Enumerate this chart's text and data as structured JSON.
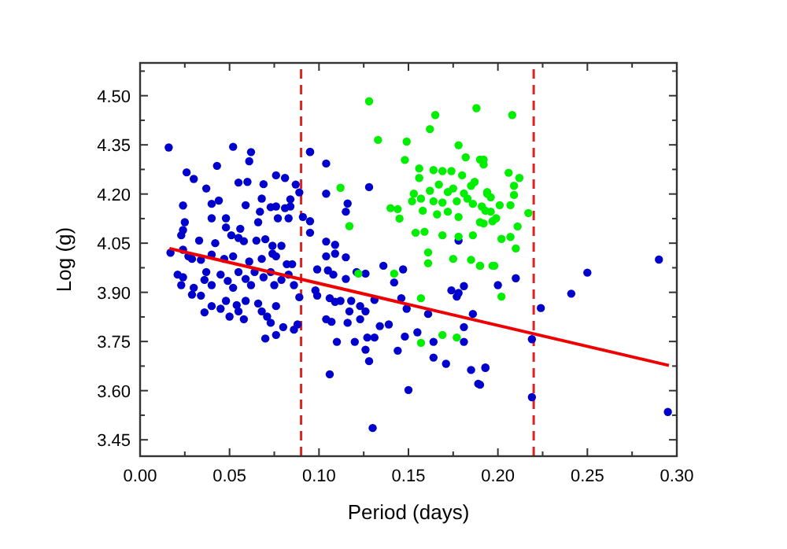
{
  "chart_data": {
    "type": "scatter",
    "xlabel": "Period (days)",
    "ylabel": "Log (g)",
    "xlim": [
      0,
      0.3
    ],
    "ylim": [
      3.4,
      4.6
    ],
    "xticks": [
      {
        "value": 0,
        "label": "0.00"
      },
      {
        "value": 0.025,
        "label": null
      },
      {
        "value": 0.05,
        "label": "0.05"
      },
      {
        "value": 0.075,
        "label": null
      },
      {
        "value": 0.1,
        "label": "0.10"
      },
      {
        "value": 0.125,
        "label": null
      },
      {
        "value": 0.15,
        "label": "0.15"
      },
      {
        "value": 0.175,
        "label": null
      },
      {
        "value": 0.2,
        "label": "0.20"
      },
      {
        "value": 0.225,
        "label": null
      },
      {
        "value": 0.25,
        "label": "0.25"
      },
      {
        "value": 0.275,
        "label": null
      },
      {
        "value": 0.3,
        "label": "0.30"
      }
    ],
    "yticks": [
      {
        "value": 3.45,
        "label": "3.45"
      },
      {
        "value": 3.525,
        "label": null
      },
      {
        "value": 3.6,
        "label": "3.60"
      },
      {
        "value": 3.675,
        "label": null
      },
      {
        "value": 3.75,
        "label": "3.75"
      },
      {
        "value": 3.825,
        "label": null
      },
      {
        "value": 3.9,
        "label": "3.90"
      },
      {
        "value": 3.975,
        "label": null
      },
      {
        "value": 4.05,
        "label": "4.05"
      },
      {
        "value": 4.125,
        "label": null
      },
      {
        "value": 4.2,
        "label": "4.20"
      },
      {
        "value": 4.275,
        "label": null
      },
      {
        "value": 4.35,
        "label": "4.35"
      },
      {
        "value": 4.425,
        "label": null
      },
      {
        "value": 4.5,
        "label": "4.50"
      },
      {
        "value": 4.575,
        "label": null
      }
    ],
    "marker": "circle",
    "series": [
      {
        "color": "#0000cc",
        "x": [
          0.016,
          0.052,
          0.062,
          0.061,
          0.026,
          0.03,
          0.043,
          0.055,
          0.06,
          0.069,
          0.076,
          0.081,
          0.087,
          0.089,
          0.095,
          0.037,
          0.024,
          0.04,
          0.044,
          0.059,
          0.068,
          0.067,
          0.073,
          0.076,
          0.081,
          0.084,
          0.084,
          0.077,
          0.083,
          0.066,
          0.091,
          0.04,
          0.048,
          0.048,
          0.056,
          0.025,
          0.024,
          0.023,
          0.033,
          0.042,
          0.051,
          0.055,
          0.058,
          0.065,
          0.07,
          0.074,
          0.074,
          0.079,
          0.017,
          0.024,
          0.027,
          0.029,
          0.034,
          0.04,
          0.047,
          0.052,
          0.061,
          0.068,
          0.076,
          0.082,
          0.085,
          0.021,
          0.024,
          0.023,
          0.03,
          0.029,
          0.034,
          0.036,
          0.037,
          0.04,
          0.045,
          0.049,
          0.052,
          0.055,
          0.059,
          0.062,
          0.064,
          0.069,
          0.073,
          0.075,
          0.079,
          0.083,
          0.086,
          0.036,
          0.04,
          0.045,
          0.048,
          0.05,
          0.055,
          0.058,
          0.059,
          0.066,
          0.068,
          0.071,
          0.073,
          0.076,
          0.08,
          0.086,
          0.088,
          0.089,
          0.07,
          0.076,
          0.054,
          0.095,
          0.104,
          0.104,
          0.095,
          0.095,
          0.116,
          0.115,
          0.128,
          0.104,
          0.109,
          0.104,
          0.109,
          0.115,
          0.099,
          0.105,
          0.108,
          0.115,
          0.121,
          0.126,
          0.136,
          0.147,
          0.142,
          0.098,
          0.099,
          0.106,
          0.109,
          0.112,
          0.118,
          0.123,
          0.131,
          0.117,
          0.123,
          0.126,
          0.104,
          0.107,
          0.116,
          0.134,
          0.139,
          0.146,
          0.149,
          0.161,
          0.148,
          0.155,
          0.11,
          0.12,
          0.127,
          0.131,
          0.126,
          0.128,
          0.144,
          0.164,
          0.164,
          0.171,
          0.174,
          0.178,
          0.177,
          0.181,
          0.186,
          0.181,
          0.181,
          0.185,
          0.189,
          0.193,
          0.106,
          0.15,
          0.13,
          0.178,
          0.19,
          0.193,
          0.2,
          0.21,
          0.224,
          0.219,
          0.219,
          0.241,
          0.25,
          0.29,
          0.295
        ],
        "values": [
          4.342,
          4.344,
          4.328,
          4.3,
          4.266,
          4.246,
          4.286,
          4.235,
          4.237,
          4.23,
          4.257,
          4.249,
          4.229,
          4.205,
          4.328,
          4.217,
          4.165,
          4.17,
          4.18,
          4.166,
          4.186,
          4.146,
          4.16,
          4.162,
          4.157,
          4.162,
          4.184,
          4.126,
          4.126,
          4.114,
          4.13,
          4.126,
          4.126,
          4.098,
          4.094,
          4.114,
          4.09,
          4.074,
          4.058,
          4.05,
          4.074,
          4.066,
          4.056,
          4.058,
          4.062,
          4.042,
          4.018,
          4.042,
          4.021,
          4.03,
          4.01,
          4.002,
          3.999,
          4.015,
          4.002,
          4.01,
          3.994,
          4.002,
          4.01,
          3.986,
          3.986,
          3.954,
          3.946,
          3.922,
          3.914,
          3.893,
          3.89,
          3.938,
          3.962,
          3.922,
          3.954,
          3.935,
          3.914,
          3.962,
          3.941,
          3.922,
          3.962,
          3.946,
          3.962,
          3.922,
          3.938,
          3.954,
          3.922,
          3.839,
          3.858,
          3.85,
          3.874,
          3.826,
          3.842,
          3.818,
          3.874,
          3.866,
          3.842,
          3.826,
          3.807,
          3.858,
          3.794,
          3.786,
          3.802,
          3.885,
          3.759,
          3.77,
          3.861,
          4.329,
          4.293,
          4.201,
          4.117,
          4.082,
          4.171,
          4.146,
          4.221,
          4.055,
          4.045,
          4.01,
          4.018,
          4.007,
          3.97,
          3.967,
          3.954,
          3.941,
          3.962,
          3.957,
          3.981,
          3.97,
          3.93,
          3.906,
          3.89,
          3.882,
          3.871,
          3.874,
          3.874,
          3.858,
          3.877,
          3.842,
          3.818,
          3.842,
          3.818,
          3.81,
          3.807,
          3.797,
          3.802,
          3.882,
          3.85,
          3.834,
          3.765,
          3.778,
          3.749,
          3.749,
          3.762,
          3.762,
          3.725,
          3.69,
          3.722,
          3.749,
          3.701,
          3.682,
          3.906,
          3.898,
          3.887,
          3.919,
          3.834,
          3.794,
          3.749,
          3.663,
          3.621,
          3.671,
          3.65,
          3.602,
          3.486,
          4.058,
          3.618,
          3.669,
          3.922,
          3.943,
          3.852,
          3.757,
          3.58,
          3.896,
          3.96,
          4.0,
          3.535
        ]
      },
      {
        "color": "#00ee00",
        "x": [
          0.128,
          0.188,
          0.165,
          0.162,
          0.133,
          0.149,
          0.148,
          0.178,
          0.182,
          0.19,
          0.192,
          0.156,
          0.164,
          0.169,
          0.174,
          0.18,
          0.187,
          0.156,
          0.162,
          0.167,
          0.172,
          0.175,
          0.181,
          0.185,
          0.194,
          0.153,
          0.152,
          0.157,
          0.164,
          0.169,
          0.177,
          0.183,
          0.186,
          0.191,
          0.196,
          0.14,
          0.144,
          0.145,
          0.158,
          0.166,
          0.172,
          0.178,
          0.19,
          0.197,
          0.112,
          0.117,
          0.154,
          0.159,
          0.169,
          0.178,
          0.186,
          0.161,
          0.161,
          0.175,
          0.185,
          0.19,
          0.197,
          0.142,
          0.122,
          0.157,
          0.169,
          0.177,
          0.157,
          0.208,
          0.192,
          0.206,
          0.212,
          0.209,
          0.209,
          0.194,
          0.196,
          0.207,
          0.201,
          0.217,
          0.193,
          0.199,
          0.192,
          0.211,
          0.202,
          0.207,
          0.21,
          0.19,
          0.198,
          0.202
        ],
        "values": [
          4.483,
          4.462,
          4.441,
          4.398,
          4.365,
          4.36,
          4.304,
          4.349,
          4.312,
          4.305,
          4.29,
          4.278,
          4.273,
          4.27,
          4.27,
          4.257,
          4.237,
          4.249,
          4.21,
          4.229,
          4.206,
          4.217,
          4.202,
          4.225,
          4.206,
          4.201,
          4.178,
          4.186,
          4.178,
          4.174,
          4.178,
          4.186,
          4.17,
          4.162,
          4.146,
          4.157,
          4.154,
          4.125,
          4.149,
          4.138,
          4.146,
          4.13,
          4.114,
          4.117,
          4.219,
          4.102,
          4.082,
          4.085,
          4.074,
          4.07,
          4.074,
          4.022,
          3.989,
          4.002,
          3.999,
          3.981,
          3.981,
          3.957,
          3.957,
          3.882,
          3.77,
          3.762,
          3.746,
          4.441,
          4.305,
          4.265,
          4.249,
          4.225,
          4.197,
          4.201,
          4.19,
          4.166,
          4.166,
          4.142,
          4.149,
          4.126,
          4.11,
          4.101,
          4.063,
          4.069,
          4.034,
          3.981,
          3.981,
          3.887
        ]
      },
      {
        "type": "line",
        "marker": "none",
        "color": "#ee0000",
        "x": [
          0.0164,
          0.2956
        ],
        "values": [
          4.034,
          3.677
        ]
      }
    ],
    "ref_lines": [
      {
        "axis": "x",
        "value": 0.09,
        "color": "#dd2222",
        "line_style": "dashed"
      },
      {
        "axis": "x",
        "value": 0.22,
        "color": "#dd2222",
        "line_style": "dashed"
      }
    ]
  }
}
